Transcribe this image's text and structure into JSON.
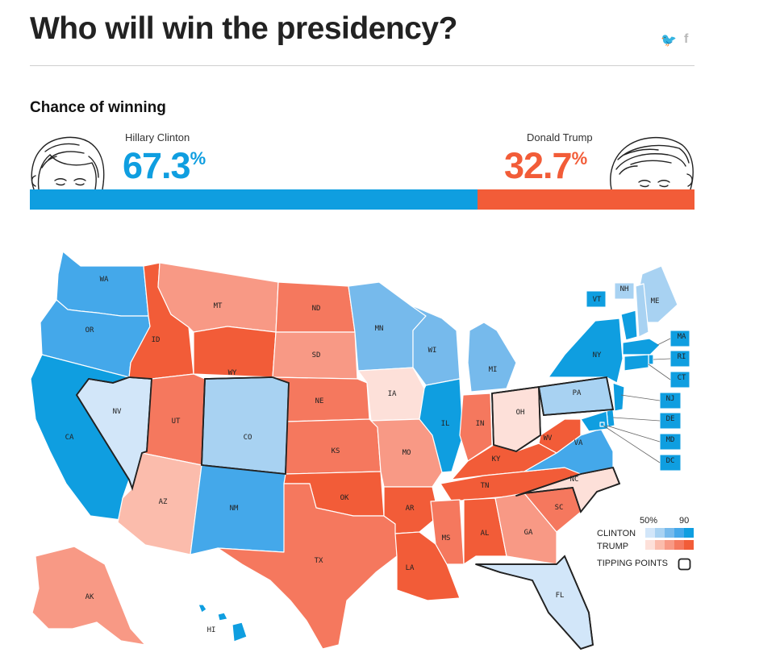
{
  "header": {
    "title": "Who will win the presidency?",
    "social": {
      "twitter": "twitter-icon",
      "facebook": "facebook-icon",
      "facebook_glyph": "f",
      "twitter_glyph": "🐦"
    }
  },
  "chance": {
    "section_label": "Chance of winning",
    "clinton": {
      "name": "Hillary Clinton",
      "pct_value": "67.3",
      "pct_symbol": "%",
      "share": 0.673,
      "color": "#0f9ee0"
    },
    "trump": {
      "name": "Donald Trump",
      "pct_value": "32.7",
      "pct_symbol": "%",
      "share": 0.327,
      "color": "#f25c38"
    }
  },
  "colors": {
    "clinton_scale": [
      "#d2e6f9",
      "#a8d2f2",
      "#76baec",
      "#44a8ea",
      "#0f9ee0"
    ],
    "trump_scale": [
      "#fde0d9",
      "#fbbcac",
      "#f89985",
      "#f5785e",
      "#f25c38"
    ]
  },
  "states": [
    {
      "code": "WA",
      "lean": "C",
      "level": 3
    },
    {
      "code": "OR",
      "lean": "C",
      "level": 3
    },
    {
      "code": "CA",
      "lean": "C",
      "level": 4
    },
    {
      "code": "NV",
      "lean": "C",
      "level": 0,
      "tipping": true
    },
    {
      "code": "ID",
      "lean": "T",
      "level": 4
    },
    {
      "code": "MT",
      "lean": "T",
      "level": 2
    },
    {
      "code": "WY",
      "lean": "T",
      "level": 4
    },
    {
      "code": "UT",
      "lean": "T",
      "level": 3
    },
    {
      "code": "AZ",
      "lean": "T",
      "level": 1
    },
    {
      "code": "CO",
      "lean": "C",
      "level": 1,
      "tipping": true
    },
    {
      "code": "NM",
      "lean": "C",
      "level": 3
    },
    {
      "code": "ND",
      "lean": "T",
      "level": 3
    },
    {
      "code": "SD",
      "lean": "T",
      "level": 2
    },
    {
      "code": "NE",
      "lean": "T",
      "level": 3
    },
    {
      "code": "KS",
      "lean": "T",
      "level": 3
    },
    {
      "code": "OK",
      "lean": "T",
      "level": 4
    },
    {
      "code": "TX",
      "lean": "T",
      "level": 3
    },
    {
      "code": "MN",
      "lean": "C",
      "level": 2
    },
    {
      "code": "IA",
      "lean": "T",
      "level": 0
    },
    {
      "code": "MO",
      "lean": "T",
      "level": 2
    },
    {
      "code": "AR",
      "lean": "T",
      "level": 4
    },
    {
      "code": "LA",
      "lean": "T",
      "level": 4
    },
    {
      "code": "WI",
      "lean": "C",
      "level": 2
    },
    {
      "code": "IL",
      "lean": "C",
      "level": 4
    },
    {
      "code": "MI",
      "lean": "C",
      "level": 2
    },
    {
      "code": "IN",
      "lean": "T",
      "level": 3
    },
    {
      "code": "OH",
      "lean": "T",
      "level": 0,
      "tipping": true
    },
    {
      "code": "KY",
      "lean": "T",
      "level": 4
    },
    {
      "code": "TN",
      "lean": "T",
      "level": 4
    },
    {
      "code": "MS",
      "lean": "T",
      "level": 3
    },
    {
      "code": "AL",
      "lean": "T",
      "level": 4
    },
    {
      "code": "GA",
      "lean": "T",
      "level": 2
    },
    {
      "code": "FL",
      "lean": "C",
      "level": 0,
      "tipping": true
    },
    {
      "code": "SC",
      "lean": "T",
      "level": 3
    },
    {
      "code": "NC",
      "lean": "T",
      "level": 0,
      "tipping": true
    },
    {
      "code": "VA",
      "lean": "C",
      "level": 3
    },
    {
      "code": "WV",
      "lean": "T",
      "level": 4
    },
    {
      "code": "PA",
      "lean": "C",
      "level": 1,
      "tipping": true
    },
    {
      "code": "NY",
      "lean": "C",
      "level": 4
    },
    {
      "code": "ME",
      "lean": "C",
      "level": 1
    },
    {
      "code": "NH",
      "lean": "C",
      "level": 1
    },
    {
      "code": "VT",
      "lean": "C",
      "level": 4
    },
    {
      "code": "MA",
      "lean": "C",
      "level": 4
    },
    {
      "code": "RI",
      "lean": "C",
      "level": 4
    },
    {
      "code": "CT",
      "lean": "C",
      "level": 4
    },
    {
      "code": "NJ",
      "lean": "C",
      "level": 4
    },
    {
      "code": "DE",
      "lean": "C",
      "level": 4
    },
    {
      "code": "MD",
      "lean": "C",
      "level": 4
    },
    {
      "code": "DC",
      "lean": "C",
      "level": 4
    },
    {
      "code": "AK",
      "lean": "T",
      "level": 2
    },
    {
      "code": "HI",
      "lean": "C",
      "level": 4
    }
  ],
  "legend": {
    "tick_50": "50%",
    "tick_90": "90",
    "clinton_label": "CLINTON",
    "trump_label": "TRUMP",
    "tipping_label": "TIPPING POINTS"
  }
}
